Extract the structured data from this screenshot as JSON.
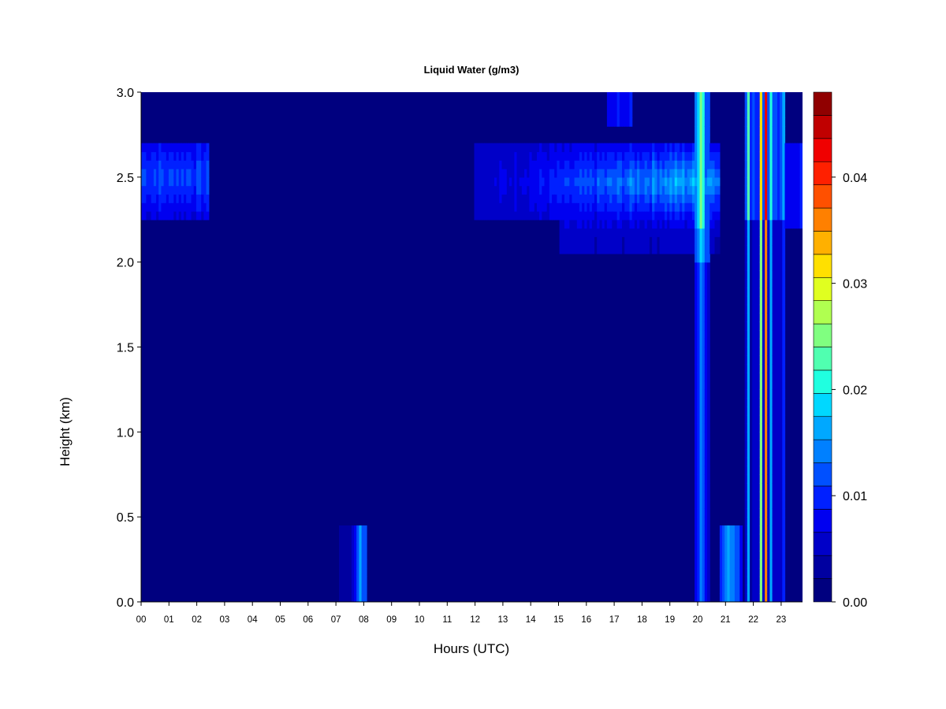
{
  "chart_data": {
    "type": "heatmap",
    "title": "Liquid Water (g/m3)",
    "xlabel": "Hours (UTC)",
    "ylabel": "Height (km)",
    "xlim": [
      0,
      23.75
    ],
    "ylim": [
      0,
      3.0
    ],
    "x_ticks": [
      "00",
      "01",
      "02",
      "03",
      "04",
      "05",
      "06",
      "07",
      "08",
      "09",
      "10",
      "11",
      "12",
      "13",
      "14",
      "15",
      "16",
      "17",
      "18",
      "19",
      "20",
      "21",
      "22",
      "23"
    ],
    "y_ticks": [
      "0.0",
      "0.5",
      "1.0",
      "1.5",
      "2.0",
      "2.5",
      "3.0"
    ],
    "colorbar": {
      "range": [
        0,
        0.048
      ],
      "tick_values": [
        0,
        0.01,
        0.02,
        0.03,
        0.04
      ],
      "tick_labels": [
        "0.00",
        "0.01",
        "0.02",
        "0.03",
        "0.04"
      ],
      "colors": [
        "#00007f",
        "#0000a0",
        "#0000c8",
        "#0000f0",
        "#0020ff",
        "#0050ff",
        "#0080ff",
        "#00a8ff",
        "#00d8ff",
        "#20ffe0",
        "#50ffb0",
        "#80ff80",
        "#b0ff50",
        "#e0ff20",
        "#ffe000",
        "#ffb000",
        "#ff8000",
        "#ff5000",
        "#ff2000",
        "#f00000",
        "#c00000",
        "#900000"
      ]
    },
    "features": [
      {
        "name": "upper cloud layer early",
        "x_range": [
          0,
          2.4
        ],
        "height_range": [
          2.25,
          2.72
        ],
        "peak_lwc": 0.012
      },
      {
        "name": "upper cloud layer afternoon",
        "x_range": [
          12.0,
          20.7
        ],
        "height_range": [
          2.05,
          2.72
        ],
        "peak_lwc": 0.018
      },
      {
        "name": "small cloud near top",
        "x_range": [
          16.7,
          17.6
        ],
        "height_range": [
          2.8,
          3.0
        ],
        "peak_lwc": 0.009
      },
      {
        "name": "low cloud morning",
        "x_range": [
          7.1,
          8.1
        ],
        "height_range": [
          0.0,
          0.45
        ],
        "peak_lwc": 0.016
      },
      {
        "name": "convective column 20h",
        "x_range": [
          19.9,
          20.4
        ],
        "height_range": [
          0.0,
          3.0
        ],
        "peak_lwc": 0.03
      },
      {
        "name": "low cloud 21h",
        "x_range": [
          20.8,
          21.6
        ],
        "height_range": [
          0.0,
          0.45
        ],
        "peak_lwc": 0.016
      },
      {
        "name": "convective columns 22h",
        "x_range": [
          21.7,
          23.1
        ],
        "height_range": [
          0.0,
          3.0
        ],
        "peak_lwc": 0.04
      }
    ]
  }
}
